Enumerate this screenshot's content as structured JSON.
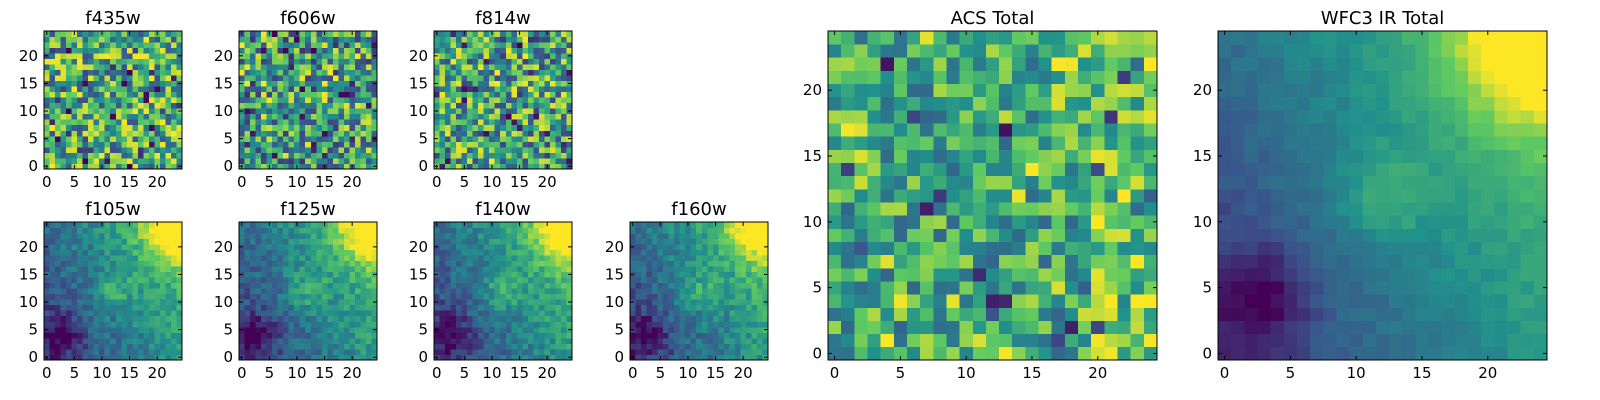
{
  "figure": {
    "colormap": "viridis",
    "colormap_stops": [
      "#440154",
      "#3b528b",
      "#21918c",
      "#5ec962",
      "#fde725"
    ]
  },
  "chart_data": [
    {
      "type": "heatmap",
      "title": "f435w",
      "shape": [
        25,
        25
      ],
      "xlim": [
        0,
        24
      ],
      "ylim": [
        0,
        24
      ],
      "xticks": [
        0,
        5,
        10,
        15,
        20
      ],
      "yticks": [
        0,
        5,
        10,
        15,
        20
      ],
      "pattern": "noise",
      "texture": "fine",
      "bias": 0.62,
      "grid": false
    },
    {
      "type": "heatmap",
      "title": "f606w",
      "shape": [
        25,
        25
      ],
      "xlim": [
        0,
        24
      ],
      "ylim": [
        0,
        24
      ],
      "xticks": [
        0,
        5,
        10,
        15,
        20
      ],
      "yticks": [
        0,
        5,
        10,
        15,
        20
      ],
      "pattern": "noise",
      "texture": "fine",
      "bias": 0.52,
      "grid": false
    },
    {
      "type": "heatmap",
      "title": "f814w",
      "shape": [
        25,
        25
      ],
      "xlim": [
        0,
        24
      ],
      "ylim": [
        0,
        24
      ],
      "xticks": [
        0,
        5,
        10,
        15,
        20
      ],
      "yticks": [
        0,
        5,
        10,
        15,
        20
      ],
      "pattern": "noise",
      "texture": "fine",
      "bias": 0.58,
      "grid": false
    },
    {
      "type": "heatmap",
      "title": "f105w",
      "shape": [
        25,
        25
      ],
      "xlim": [
        0,
        24
      ],
      "ylim": [
        0,
        24
      ],
      "xticks": [
        0,
        5,
        10,
        15,
        20
      ],
      "yticks": [
        0,
        5,
        10,
        15,
        20
      ],
      "pattern": "smooth",
      "texture": "noisy",
      "grid": false
    },
    {
      "type": "heatmap",
      "title": "f125w",
      "shape": [
        25,
        25
      ],
      "xlim": [
        0,
        24
      ],
      "ylim": [
        0,
        24
      ],
      "xticks": [
        0,
        5,
        10,
        15,
        20
      ],
      "yticks": [
        0,
        5,
        10,
        15,
        20
      ],
      "pattern": "smooth",
      "texture": "noisy",
      "grid": false
    },
    {
      "type": "heatmap",
      "title": "f140w",
      "shape": [
        25,
        25
      ],
      "xlim": [
        0,
        24
      ],
      "ylim": [
        0,
        24
      ],
      "xticks": [
        0,
        5,
        10,
        15,
        20
      ],
      "yticks": [
        0,
        5,
        10,
        15,
        20
      ],
      "pattern": "smooth",
      "texture": "noisy",
      "grid": false
    },
    {
      "type": "heatmap",
      "title": "f160w",
      "shape": [
        25,
        25
      ],
      "xlim": [
        0,
        24
      ],
      "ylim": [
        0,
        24
      ],
      "xticks": [
        0,
        5,
        10,
        15,
        20
      ],
      "yticks": [
        0,
        5,
        10,
        15,
        20
      ],
      "pattern": "smooth",
      "texture": "noisy",
      "grid": false
    },
    {
      "type": "heatmap",
      "title": "ACS Total",
      "shape": [
        25,
        25
      ],
      "xlim": [
        0,
        24
      ],
      "ylim": [
        0,
        24
      ],
      "xticks": [
        0,
        5,
        10,
        15,
        20
      ],
      "yticks": [
        0,
        5,
        10,
        15,
        20
      ],
      "pattern": "noise",
      "texture": "coarse",
      "bias": 0.6,
      "grid": false
    },
    {
      "type": "heatmap",
      "title": "WFC3 IR Total",
      "shape": [
        25,
        25
      ],
      "xlim": [
        0,
        24
      ],
      "ylim": [
        0,
        24
      ],
      "xticks": [
        0,
        5,
        10,
        15,
        20
      ],
      "yticks": [
        0,
        5,
        10,
        15,
        20
      ],
      "pattern": "smooth",
      "texture": "clean",
      "grid": false
    }
  ]
}
